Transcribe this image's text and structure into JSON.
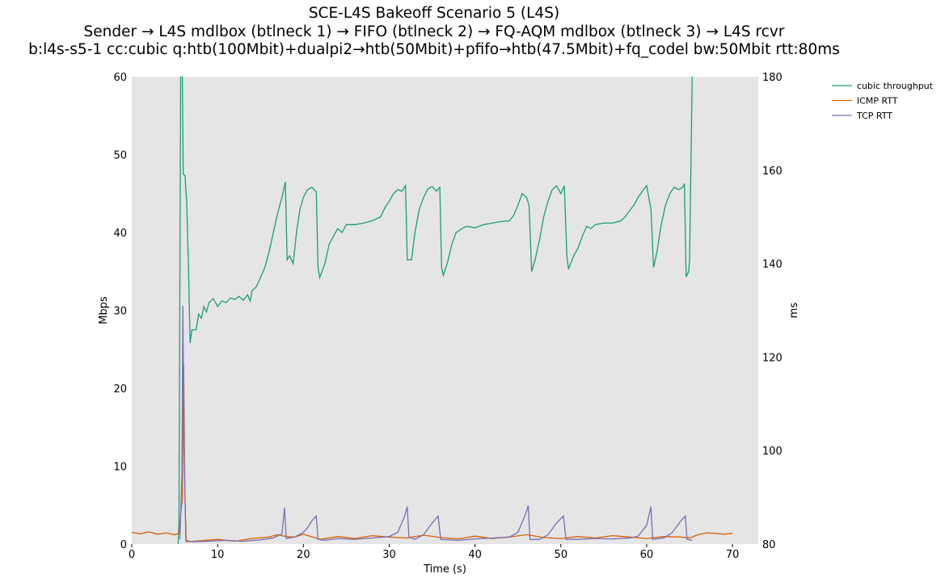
{
  "chart_data": {
    "type": "line",
    "title": "SCE-L4S Bakeoff Scenario 5 (L4S)",
    "subtitle_lines": [
      "Sender → L4S mdlbox (btlneck 1) → FIFO (btlneck 2) → FQ-AQM mdlbox (btlneck 3) → L4S rcvr",
      "b:l4s-s5-1 cc:cubic q:htb(100Mbit)+dualpi2→htb(50Mbit)+pfifo→htb(47.5Mbit)+fq_codel bw:50Mbit rtt:80ms"
    ],
    "xlabel": "Time (s)",
    "ylabel_left": "Mbps",
    "ylabel_right": "ms",
    "xlim": [
      0,
      73
    ],
    "ylim_left": [
      0,
      60
    ],
    "ylim_right": [
      80,
      180
    ],
    "xticks": [
      "0",
      "10",
      "20",
      "30",
      "40",
      "50",
      "60",
      "70"
    ],
    "yticks_left": [
      "0",
      "10",
      "20",
      "30",
      "40",
      "50",
      "60"
    ],
    "yticks_right": [
      "80",
      "100",
      "120",
      "140",
      "160",
      "180"
    ],
    "grid": false,
    "background": "#e5e5e5",
    "legend_position": "outside-top-right",
    "series": [
      {
        "name": "cubic throughput",
        "axis": "left",
        "color": "#1b9e77",
        "points": [
          [
            5.4,
            0
          ],
          [
            5.5,
            3
          ],
          [
            5.7,
            60
          ],
          [
            5.9,
            60
          ],
          [
            6.0,
            47.5
          ],
          [
            6.2,
            47.3
          ],
          [
            6.4,
            44
          ],
          [
            6.6,
            36
          ],
          [
            6.8,
            25.8
          ],
          [
            7.0,
            27.5
          ],
          [
            7.5,
            27.5
          ],
          [
            7.8,
            29.5
          ],
          [
            8.1,
            29
          ],
          [
            8.4,
            30.5
          ],
          [
            8.7,
            29.8
          ],
          [
            9.0,
            31
          ],
          [
            9.5,
            31.5
          ],
          [
            10,
            30.5
          ],
          [
            10.5,
            31.2
          ],
          [
            11,
            31
          ],
          [
            11.5,
            31.6
          ],
          [
            12,
            31.4
          ],
          [
            12.5,
            31.8
          ],
          [
            13,
            31.3
          ],
          [
            13.5,
            32
          ],
          [
            13.8,
            31.2
          ],
          [
            14,
            32.5
          ],
          [
            14.5,
            33
          ],
          [
            15,
            34.2
          ],
          [
            15.5,
            35.5
          ],
          [
            16,
            37.5
          ],
          [
            16.5,
            40
          ],
          [
            17,
            42.5
          ],
          [
            17.5,
            44.5
          ],
          [
            17.9,
            46.5
          ],
          [
            18.1,
            36.5
          ],
          [
            18.4,
            37
          ],
          [
            18.8,
            36
          ],
          [
            19.2,
            40
          ],
          [
            19.6,
            43
          ],
          [
            20,
            44.5
          ],
          [
            20.5,
            45.5
          ],
          [
            21,
            45.8
          ],
          [
            21.5,
            45.2
          ],
          [
            21.7,
            35.5
          ],
          [
            21.9,
            34.2
          ],
          [
            22.5,
            36
          ],
          [
            23,
            38.5
          ],
          [
            23.5,
            39.5
          ],
          [
            24,
            40.5
          ],
          [
            24.5,
            40
          ],
          [
            25,
            41
          ],
          [
            26,
            41
          ],
          [
            27,
            41.2
          ],
          [
            28,
            41.5
          ],
          [
            29,
            42
          ],
          [
            29.5,
            43.2
          ],
          [
            30,
            44
          ],
          [
            30.5,
            45
          ],
          [
            31,
            45.5
          ],
          [
            31.5,
            45.3
          ],
          [
            31.9,
            46
          ],
          [
            32.1,
            36.5
          ],
          [
            32.6,
            36.5
          ],
          [
            33,
            40
          ],
          [
            33.5,
            43
          ],
          [
            34,
            44.5
          ],
          [
            34.5,
            45.6
          ],
          [
            35,
            45.9
          ],
          [
            35.5,
            45.3
          ],
          [
            35.9,
            45.8
          ],
          [
            36.1,
            35.5
          ],
          [
            36.3,
            34.5
          ],
          [
            36.8,
            36.2
          ],
          [
            37.3,
            38.5
          ],
          [
            37.8,
            40
          ],
          [
            38.5,
            40.5
          ],
          [
            39,
            40.8
          ],
          [
            40,
            40.6
          ],
          [
            41,
            41
          ],
          [
            42,
            41.2
          ],
          [
            43,
            41.4
          ],
          [
            44,
            41.5
          ],
          [
            44.5,
            42.2
          ],
          [
            45,
            43.5
          ],
          [
            45.5,
            45
          ],
          [
            46,
            44.5
          ],
          [
            46.3,
            43.5
          ],
          [
            46.6,
            35
          ],
          [
            47,
            36.5
          ],
          [
            47.5,
            39
          ],
          [
            48,
            42
          ],
          [
            48.5,
            44
          ],
          [
            49,
            45.5
          ],
          [
            49.5,
            46
          ],
          [
            50,
            45
          ],
          [
            50.4,
            46
          ],
          [
            50.7,
            37
          ],
          [
            50.9,
            35.3
          ],
          [
            51.5,
            37
          ],
          [
            52,
            38
          ],
          [
            52.5,
            39.5
          ],
          [
            53,
            40.8
          ],
          [
            53.5,
            40.5
          ],
          [
            54,
            41
          ],
          [
            55,
            41.2
          ],
          [
            56,
            41.2
          ],
          [
            57,
            41.5
          ],
          [
            57.5,
            42
          ],
          [
            58,
            42.8
          ],
          [
            58.5,
            43.5
          ],
          [
            59,
            44.5
          ],
          [
            59.5,
            45.3
          ],
          [
            60,
            46
          ],
          [
            60.5,
            43
          ],
          [
            60.8,
            35.5
          ],
          [
            61.2,
            37.5
          ],
          [
            61.7,
            41
          ],
          [
            62.2,
            43.5
          ],
          [
            62.7,
            45
          ],
          [
            63.2,
            45.8
          ],
          [
            63.7,
            45.5
          ],
          [
            64.2,
            45.8
          ],
          [
            64.4,
            46.3
          ],
          [
            64.6,
            34.3
          ],
          [
            64.9,
            35
          ],
          [
            65.0,
            36.5
          ],
          [
            65.3,
            60
          ]
        ]
      },
      {
        "name": "ICMP RTT",
        "axis": "right",
        "color": "#d95f02",
        "points": [
          [
            0,
            82.5
          ],
          [
            1,
            82.2
          ],
          [
            2,
            82.6
          ],
          [
            3,
            82.1
          ],
          [
            4,
            82.4
          ],
          [
            5,
            82
          ],
          [
            5.5,
            82.3
          ],
          [
            5.9,
            90
          ],
          [
            6.05,
            118.5
          ],
          [
            6.2,
            90
          ],
          [
            6.35,
            80.5
          ],
          [
            8,
            80.7
          ],
          [
            10,
            81
          ],
          [
            12,
            80.6
          ],
          [
            14,
            81.2
          ],
          [
            16,
            81.5
          ],
          [
            17,
            82
          ],
          [
            18,
            81.6
          ],
          [
            19,
            81.5
          ],
          [
            20,
            82.1
          ],
          [
            22,
            81
          ],
          [
            24,
            81.6
          ],
          [
            26,
            81.2
          ],
          [
            28,
            81.8
          ],
          [
            30,
            81.5
          ],
          [
            32,
            81.3
          ],
          [
            34,
            81.9
          ],
          [
            36,
            81.4
          ],
          [
            38,
            81.1
          ],
          [
            40,
            81.7
          ],
          [
            42,
            81.2
          ],
          [
            44,
            81.5
          ],
          [
            46,
            82
          ],
          [
            48,
            81.4
          ],
          [
            50,
            81.2
          ],
          [
            52,
            81.6
          ],
          [
            54,
            81.3
          ],
          [
            56,
            81.8
          ],
          [
            58,
            81.5
          ],
          [
            60,
            81.2
          ],
          [
            62,
            81.6
          ],
          [
            64,
            81.5
          ],
          [
            65,
            81.3
          ],
          [
            66,
            82
          ],
          [
            67,
            82.4
          ],
          [
            68,
            82.3
          ],
          [
            69,
            82.1
          ],
          [
            70,
            82.3
          ]
        ]
      },
      {
        "name": "TCP RTT",
        "axis": "right",
        "color": "#7570b3",
        "points": [
          [
            5.6,
            81
          ],
          [
            5.85,
            95
          ],
          [
            5.95,
            131
          ],
          [
            6.1,
            100
          ],
          [
            6.3,
            80.8
          ],
          [
            7,
            80.5
          ],
          [
            9,
            80.6
          ],
          [
            11,
            80.8
          ],
          [
            13,
            80.6
          ],
          [
            15,
            80.9
          ],
          [
            16.5,
            81.3
          ],
          [
            17.5,
            82.2
          ],
          [
            17.8,
            87.8
          ],
          [
            18,
            81.2
          ],
          [
            19,
            81.5
          ],
          [
            20,
            82.5
          ],
          [
            20.5,
            83.5
          ],
          [
            21,
            85
          ],
          [
            21.5,
            86
          ],
          [
            21.7,
            81
          ],
          [
            22.5,
            80.8
          ],
          [
            24,
            81.2
          ],
          [
            26,
            81
          ],
          [
            28,
            81.3
          ],
          [
            30,
            81.6
          ],
          [
            31,
            82.5
          ],
          [
            31.8,
            86
          ],
          [
            32.1,
            88
          ],
          [
            32.3,
            81.5
          ],
          [
            33,
            81
          ],
          [
            34,
            82
          ],
          [
            35,
            84.5
          ],
          [
            35.7,
            86
          ],
          [
            36,
            81
          ],
          [
            38,
            80.8
          ],
          [
            40,
            81.1
          ],
          [
            42,
            81.3
          ],
          [
            44,
            81.5
          ],
          [
            45,
            82.5
          ],
          [
            45.8,
            86
          ],
          [
            46.2,
            88.2
          ],
          [
            46.4,
            81
          ],
          [
            47.5,
            81
          ],
          [
            48.5,
            82
          ],
          [
            49.5,
            84.5
          ],
          [
            50.3,
            86
          ],
          [
            50.6,
            81
          ],
          [
            52,
            81
          ],
          [
            54,
            81.2
          ],
          [
            56,
            81.1
          ],
          [
            58,
            81.3
          ],
          [
            59,
            81.7
          ],
          [
            60,
            84
          ],
          [
            60.5,
            88
          ],
          [
            60.7,
            81
          ],
          [
            62,
            81.3
          ],
          [
            63,
            82.5
          ],
          [
            64,
            85
          ],
          [
            64.5,
            86
          ],
          [
            64.7,
            81
          ],
          [
            65.3,
            80.8
          ]
        ]
      }
    ]
  }
}
